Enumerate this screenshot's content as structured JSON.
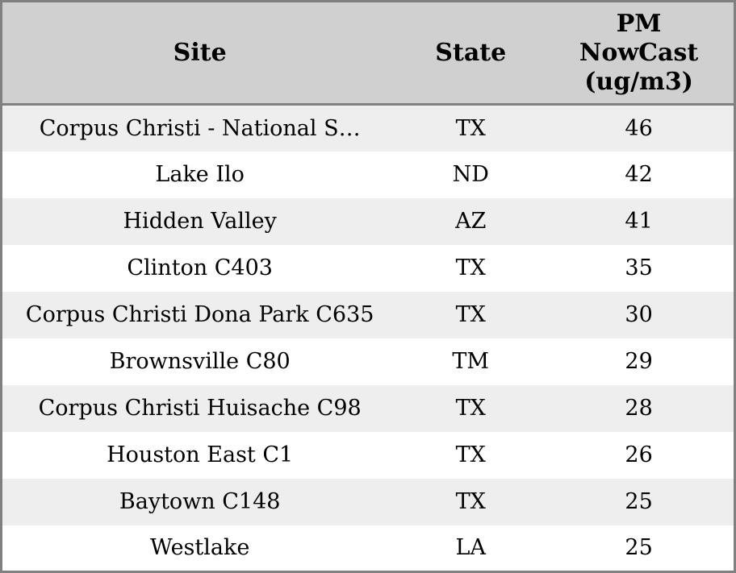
{
  "colors": {
    "outer_border": "#808080",
    "header_bg": "#d0d0d0",
    "row_stripe_bg": "#eeeeee",
    "row_bg": "#ffffff",
    "text": "#000000"
  },
  "chart_data": {
    "type": "table",
    "columns": [
      "Site",
      "State",
      "PM NowCast (ug/m3)"
    ],
    "sort": "PM NowCast descending",
    "rows": [
      {
        "site": "Corpus Christi - National S…",
        "state": "TX",
        "pm_nowcast": "46"
      },
      {
        "site": "Lake Ilo",
        "state": "ND",
        "pm_nowcast": "42"
      },
      {
        "site": "Hidden Valley",
        "state": "AZ",
        "pm_nowcast": "41"
      },
      {
        "site": "Clinton C403",
        "state": "TX",
        "pm_nowcast": "35"
      },
      {
        "site": "Corpus Christi Dona Park C635",
        "state": "TX",
        "pm_nowcast": "30"
      },
      {
        "site": "Brownsville C80",
        "state": "TM",
        "pm_nowcast": "29"
      },
      {
        "site": "Corpus Christi Huisache C98",
        "state": "TX",
        "pm_nowcast": "28"
      },
      {
        "site": "Houston East C1",
        "state": "TX",
        "pm_nowcast": "26"
      },
      {
        "site": "Baytown C148",
        "state": "TX",
        "pm_nowcast": "25"
      },
      {
        "site": "Westlake",
        "state": "LA",
        "pm_nowcast": "25"
      }
    ]
  }
}
